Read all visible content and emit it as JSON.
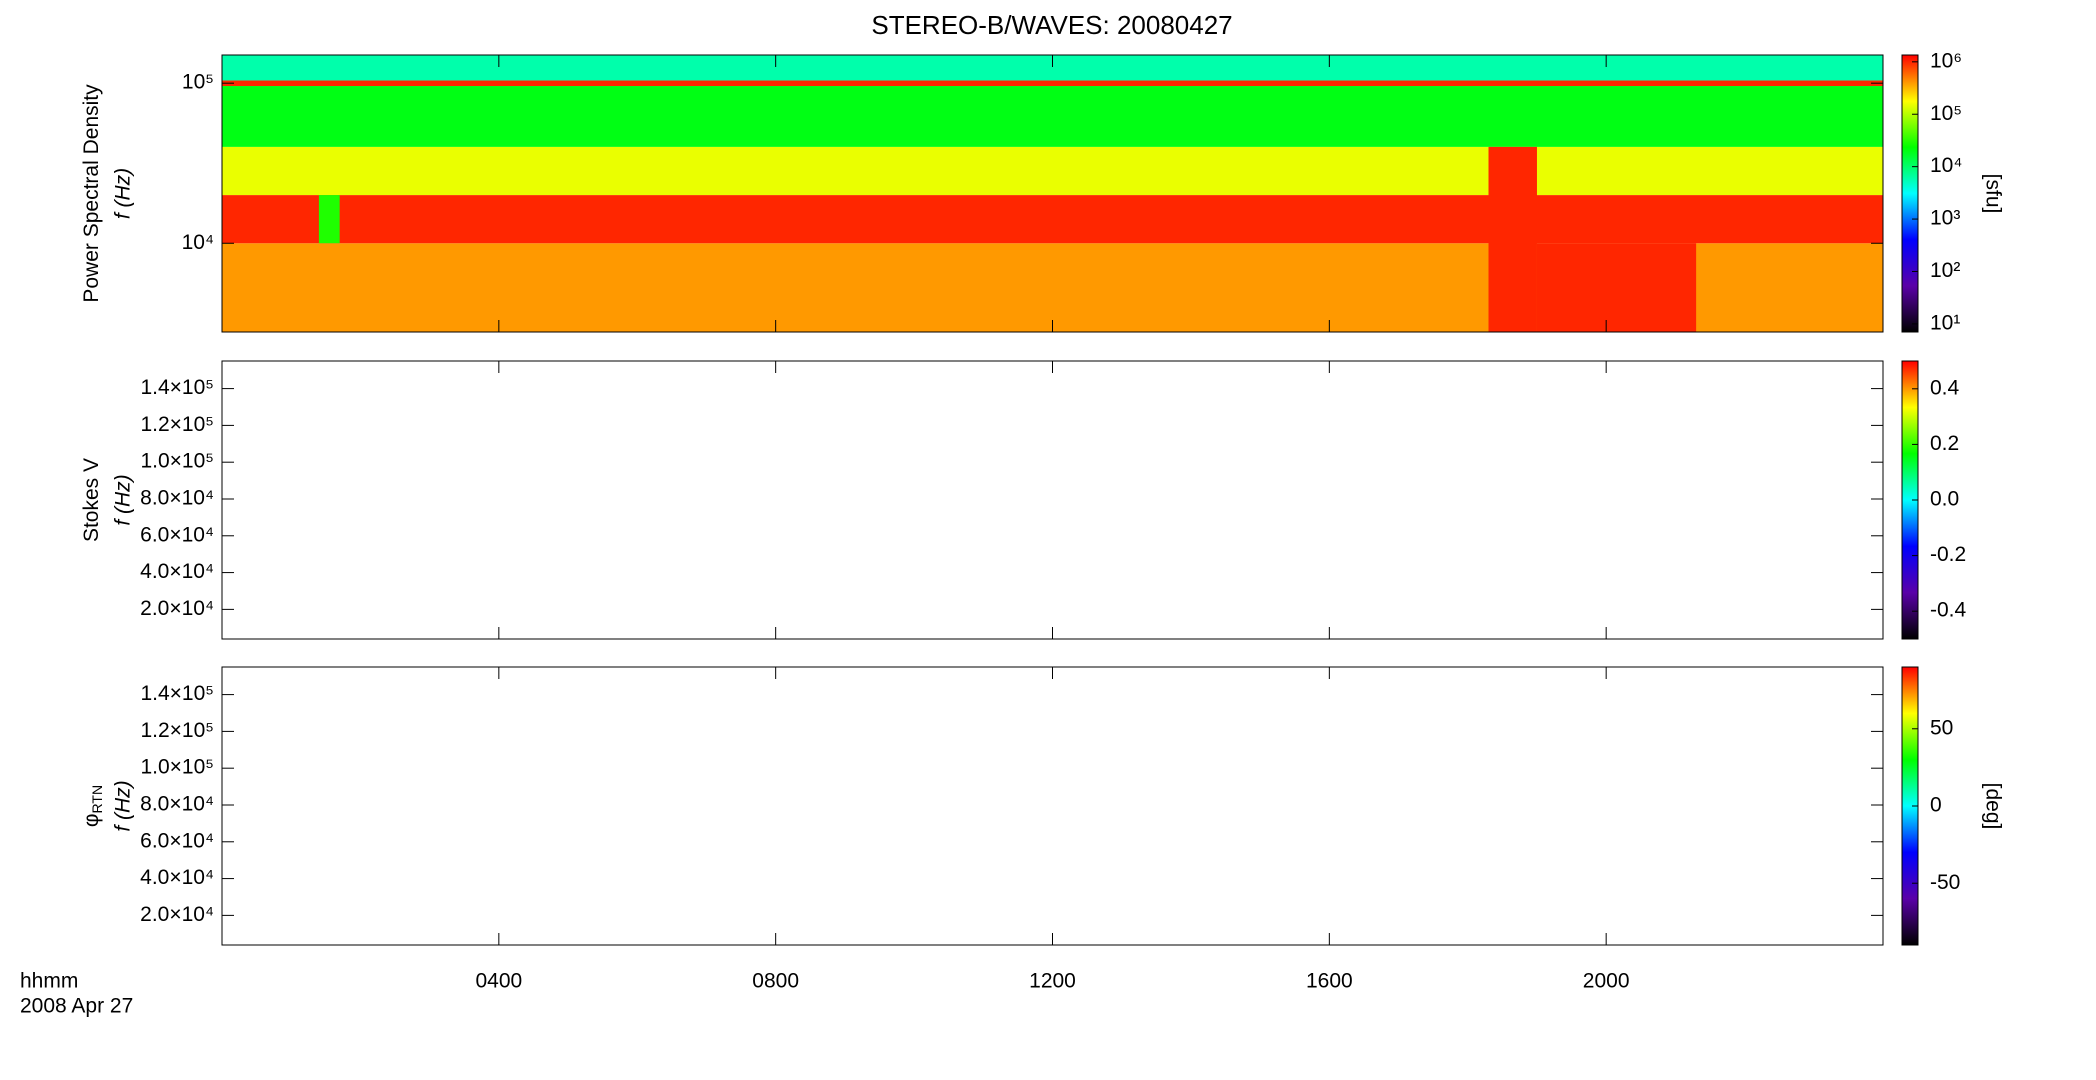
{
  "chart_data": {
    "type": "spectrogram",
    "title": "STEREO-B/WAVES: 20080427",
    "xlabel": [
      "hhmm",
      "2008 Apr 27"
    ],
    "xlim": [
      0,
      24
    ],
    "xticks": [
      {
        "value": 4,
        "label": "0400"
      },
      {
        "value": 8,
        "label": "0800"
      },
      {
        "value": 12,
        "label": "1200"
      },
      {
        "value": 16,
        "label": "1600"
      },
      {
        "value": 20,
        "label": "2000"
      }
    ],
    "colormap": [
      "#000000",
      "#5a00a8",
      "#0000ff",
      "#00ffff",
      "#00ff00",
      "#ffff00",
      "#ff0000"
    ],
    "panels": [
      {
        "quantity": "Power Spectral Density",
        "ylabel": "f (Hz)",
        "yscale": "log",
        "ylim": [
          2790,
          150000
        ],
        "yticks": [
          {
            "value": 10000,
            "label": "10⁴"
          },
          {
            "value": 100000,
            "label": "10⁵"
          }
        ],
        "cscale": "log",
        "clim": [
          7,
          1350000
        ],
        "clabel": "[sfu]",
        "cticks": [
          {
            "value": 10,
            "label": "10¹"
          },
          {
            "value": 100,
            "label": "10²"
          },
          {
            "value": 1000,
            "label": "10³"
          },
          {
            "value": 10000,
            "label": "10⁴"
          },
          {
            "value": 100000,
            "label": "10⁵"
          },
          {
            "value": 1000000,
            "label": "10⁶"
          }
        ],
        "bands": [
          {
            "flim": [
              2790,
              10000
            ],
            "value": 400000
          },
          {
            "flim": [
              10000,
              20000
            ],
            "value": 1000000
          },
          {
            "flim": [
              20000,
              40000
            ],
            "value": 150000
          },
          {
            "flim": [
              40000,
              96000
            ],
            "value": 20000
          },
          {
            "flim": [
              96000,
              104000
            ],
            "value": 1000000
          },
          {
            "flim": [
              104000,
              150000
            ],
            "value": 6000
          }
        ],
        "events": [
          {
            "tlim": [
              18.3,
              19.0
            ],
            "flim": [
              2790,
              40000
            ],
            "value": 1000000
          },
          {
            "tlim": [
              19.0,
              21.3
            ],
            "flim": [
              2790,
              10000
            ],
            "value": 1000000
          },
          {
            "tlim": [
              1.4,
              1.7
            ],
            "flim": [
              10000,
              20000
            ],
            "value": 30000
          }
        ]
      },
      {
        "quantity": "Stokes V",
        "ylabel": "f (Hz)",
        "yscale": "linear",
        "ylim": [
          3900,
          155000
        ],
        "yticks": [
          {
            "value": 20000,
            "label": "2.0×10⁴"
          },
          {
            "value": 40000,
            "label": "4.0×10⁴"
          },
          {
            "value": 60000,
            "label": "6.0×10⁴"
          },
          {
            "value": 80000,
            "label": "8.0×10⁴"
          },
          {
            "value": 100000,
            "label": "1.0×10⁵"
          },
          {
            "value": 120000,
            "label": "1.2×10⁵"
          },
          {
            "value": 140000,
            "label": "1.4×10⁵"
          }
        ],
        "cscale": "linear",
        "clim": [
          -0.5,
          0.5
        ],
        "cticks": [
          -0.4,
          -0.2,
          {
            "value": 0,
            "label": "0.0"
          },
          0.2,
          0.4
        ],
        "bands": [],
        "events": []
      },
      {
        "quantity": "φ",
        "quantity_sub": "RTN",
        "ylabel": "f (Hz)",
        "yscale": "linear",
        "ylim": [
          3900,
          155000
        ],
        "yticks": [
          {
            "value": 20000,
            "label": "2.0×10⁴"
          },
          {
            "value": 40000,
            "label": "4.0×10⁴"
          },
          {
            "value": 60000,
            "label": "6.0×10⁴"
          },
          {
            "value": 80000,
            "label": "8.0×10⁴"
          },
          {
            "value": 100000,
            "label": "1.0×10⁵"
          },
          {
            "value": 120000,
            "label": "1.2×10⁵"
          },
          {
            "value": 140000,
            "label": "1.4×10⁵"
          }
        ],
        "cscale": "linear",
        "clim": [
          -90,
          90
        ],
        "clabel": "[deg]",
        "cticks": [
          -50,
          0,
          50
        ],
        "bands": [],
        "events": []
      }
    ]
  }
}
